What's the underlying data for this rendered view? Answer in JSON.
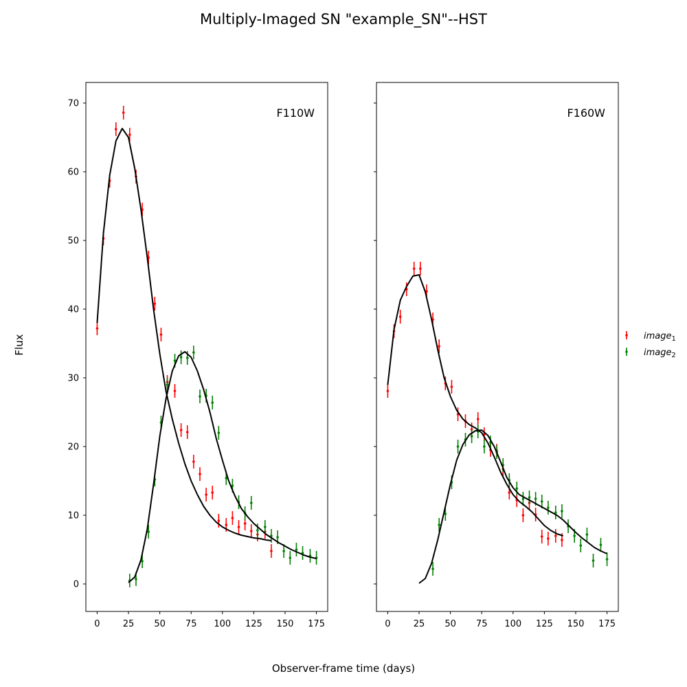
{
  "figure": {
    "suptitle": "Multiply-Imaged SN \"example_SN\"--HST",
    "xlabel": "Observer-frame time (days)",
    "ylabel": "Flux"
  },
  "colors": {
    "image_1": "#ff0000",
    "image_2": "#008000",
    "model": "#000000"
  },
  "legend": {
    "placement": "right",
    "entries": [
      {
        "series": "image_1",
        "label_base": "image",
        "label_sub": "1"
      },
      {
        "series": "image_2",
        "label_base": "image",
        "label_sub": "2"
      }
    ]
  },
  "chart_data": [
    {
      "type": "scatter",
      "title": "F110W",
      "xlim": [
        -9,
        184
      ],
      "ylim": [
        -4,
        73
      ],
      "xticks": [
        0,
        25,
        50,
        75,
        100,
        125,
        150,
        175
      ],
      "yticks": [
        0,
        10,
        20,
        30,
        40,
        50,
        60,
        70
      ],
      "grid": false,
      "series": [
        {
          "name": "image_1",
          "kind": "errorbar",
          "x": [
            0,
            5,
            10,
            15,
            21,
            26,
            31,
            36,
            41,
            46,
            51,
            56,
            62,
            67,
            72,
            77,
            82,
            87,
            92,
            97,
            103,
            108,
            113,
            118,
            123,
            128,
            134,
            139
          ],
          "y": [
            37.2,
            50.3,
            58.7,
            66.2,
            68.6,
            65.4,
            59.3,
            54.5,
            47.5,
            40.8,
            36.3,
            29.4,
            28.1,
            22.4,
            22.1,
            17.8,
            16.0,
            13.0,
            13.3,
            9.2,
            8.6,
            9.6,
            8.3,
            8.8,
            7.7,
            7.2,
            7.6,
            4.8
          ],
          "yerr": [
            1.0,
            1.0,
            1.0,
            1.0,
            1.0,
            1.0,
            1.0,
            1.0,
            1.0,
            1.0,
            1.0,
            1.0,
            1.0,
            1.0,
            1.0,
            1.0,
            1.0,
            1.0,
            1.0,
            1.0,
            1.0,
            1.0,
            1.0,
            1.0,
            1.0,
            1.0,
            1.0,
            1.0
          ]
        },
        {
          "name": "image_2",
          "kind": "errorbar",
          "x": [
            26,
            31,
            36,
            41,
            46,
            51,
            56,
            62,
            67,
            72,
            77,
            82,
            87,
            92,
            97,
            103,
            108,
            113,
            118,
            123,
            128,
            134,
            139,
            144,
            149,
            154,
            159,
            164,
            170,
            175
          ],
          "y": [
            0.5,
            0.7,
            3.3,
            7.6,
            15.2,
            23.5,
            29.0,
            32.5,
            33.0,
            32.9,
            33.7,
            27.3,
            27.4,
            26.4,
            22.0,
            15.4,
            14.3,
            11.9,
            10.3,
            11.8,
            7.8,
            8.3,
            7.0,
            6.8,
            4.8,
            3.8,
            5.0,
            4.5,
            4.1,
            3.8
          ],
          "yerr": [
            1.0,
            1.0,
            1.0,
            1.0,
            1.0,
            1.0,
            1.0,
            1.0,
            1.0,
            1.0,
            1.0,
            1.0,
            1.0,
            1.0,
            1.0,
            1.0,
            1.0,
            1.0,
            1.0,
            1.0,
            1.0,
            1.0,
            1.0,
            1.0,
            1.0,
            1.0,
            1.0,
            1.0,
            1.0,
            1.0
          ]
        },
        {
          "name": "image_1_model",
          "kind": "line",
          "x": [
            0,
            5,
            10,
            15,
            20,
            25,
            30,
            35,
            40,
            45,
            50,
            55,
            60,
            65,
            70,
            75,
            80,
            85,
            90,
            95,
            100,
            105,
            110,
            115,
            120,
            125,
            130,
            135,
            139
          ],
          "y": [
            38,
            51,
            59.5,
            64.5,
            66.3,
            65,
            60.5,
            54.5,
            47.5,
            40,
            33.5,
            28,
            24,
            20.5,
            17.5,
            15,
            13,
            11.3,
            10,
            9,
            8.3,
            7.8,
            7.4,
            7.1,
            6.9,
            6.7,
            6.6,
            6.4,
            6.3
          ]
        },
        {
          "name": "image_2_model",
          "kind": "line",
          "x": [
            25,
            30,
            35,
            40,
            45,
            50,
            55,
            60,
            65,
            70,
            75,
            80,
            85,
            90,
            95,
            100,
            105,
            110,
            115,
            120,
            125,
            130,
            135,
            140,
            145,
            150,
            155,
            160,
            165,
            170,
            175
          ],
          "y": [
            0.2,
            1,
            3.5,
            8,
            14.5,
            21.5,
            27,
            31,
            33.2,
            33.8,
            33,
            31,
            28.3,
            25,
            21.2,
            18,
            15,
            12.8,
            11,
            9.8,
            8.8,
            8,
            7.2,
            6.6,
            6,
            5.5,
            5,
            4.6,
            4.2,
            3.9,
            3.7
          ]
        }
      ]
    },
    {
      "type": "scatter",
      "title": "F160W",
      "xlim": [
        -9,
        184
      ],
      "ylim": [
        -4,
        73
      ],
      "xticks": [
        0,
        25,
        50,
        75,
        100,
        125,
        150,
        175
      ],
      "yticks": [
        0,
        10,
        20,
        30,
        40,
        50,
        60,
        70
      ],
      "show_ytick_labels": false,
      "grid": false,
      "series": [
        {
          "name": "image_1",
          "kind": "errorbar",
          "x": [
            0,
            5,
            10,
            15,
            21,
            26,
            31,
            36,
            41,
            46,
            51,
            56,
            62,
            67,
            72,
            77,
            82,
            87,
            92,
            97,
            103,
            108,
            113,
            118,
            123,
            128,
            134,
            139
          ],
          "y": [
            28.1,
            36.8,
            38.9,
            42.9,
            45.9,
            45.9,
            42.6,
            38.5,
            34.6,
            29.2,
            28.7,
            24.7,
            23.7,
            22.5,
            24.0,
            21.8,
            19.5,
            19.4,
            16.7,
            13.3,
            12.2,
            10.0,
            11.8,
            10.1,
            6.9,
            6.6,
            7.0,
            6.4
          ],
          "yerr": [
            1.0,
            1.0,
            1.0,
            1.0,
            1.0,
            1.0,
            1.0,
            1.0,
            1.0,
            1.0,
            1.0,
            1.0,
            1.0,
            1.0,
            1.0,
            1.0,
            1.0,
            1.0,
            1.0,
            1.0,
            1.0,
            1.0,
            1.0,
            1.0,
            1.0,
            1.0,
            1.0,
            1.0
          ]
        },
        {
          "name": "image_2",
          "kind": "errorbar",
          "x": [
            36,
            41,
            46,
            51,
            56,
            62,
            67,
            72,
            77,
            82,
            87,
            92,
            97,
            103,
            108,
            113,
            118,
            123,
            128,
            134,
            139,
            144,
            149,
            154,
            159,
            164,
            170,
            175
          ],
          "y": [
            2.2,
            8.6,
            10.2,
            14.8,
            20.0,
            21.0,
            21.5,
            22.2,
            20.0,
            20.6,
            19.2,
            17.3,
            15.1,
            13.9,
            12.4,
            12.6,
            12.4,
            12.0,
            11.1,
            10.4,
            10.6,
            8.4,
            7.0,
            5.6,
            7.2,
            3.4,
            5.7,
            3.6
          ],
          "yerr": [
            1.0,
            1.0,
            1.0,
            1.0,
            1.0,
            1.0,
            1.0,
            1.0,
            1.0,
            1.0,
            1.0,
            1.0,
            1.0,
            1.0,
            1.0,
            1.0,
            1.0,
            1.0,
            1.0,
            1.0,
            1.0,
            1.0,
            1.0,
            1.0,
            1.0,
            1.0,
            1.0,
            1.0
          ]
        },
        {
          "name": "image_1_model",
          "kind": "line",
          "x": [
            0,
            5,
            10,
            15,
            20,
            25,
            30,
            35,
            40,
            45,
            50,
            55,
            60,
            65,
            70,
            75,
            80,
            85,
            90,
            95,
            100,
            105,
            110,
            115,
            120,
            125,
            130,
            135,
            140
          ],
          "y": [
            29,
            37,
            41.3,
            43.3,
            44.8,
            45,
            42.5,
            38.5,
            34,
            30,
            27.3,
            25.3,
            24,
            23.2,
            22.7,
            22,
            20.5,
            18.5,
            16.3,
            14.5,
            13,
            12,
            11.3,
            10.5,
            9.5,
            8.5,
            7.8,
            7.3,
            7
          ]
        },
        {
          "name": "image_2_model",
          "kind": "line",
          "x": [
            25,
            30,
            35,
            40,
            45,
            50,
            55,
            60,
            65,
            70,
            75,
            80,
            85,
            90,
            95,
            100,
            105,
            110,
            115,
            120,
            125,
            130,
            135,
            140,
            145,
            150,
            155,
            160,
            165,
            170,
            175
          ],
          "y": [
            0.1,
            0.8,
            3,
            6.5,
            10.5,
            14.5,
            18,
            20.3,
            21.7,
            22.3,
            22.4,
            21.6,
            20,
            17.8,
            15.5,
            14,
            13,
            12.5,
            12,
            11.5,
            11,
            10.5,
            10,
            9.3,
            8.4,
            7.5,
            6.7,
            6,
            5.3,
            4.8,
            4.4
          ]
        }
      ]
    }
  ]
}
